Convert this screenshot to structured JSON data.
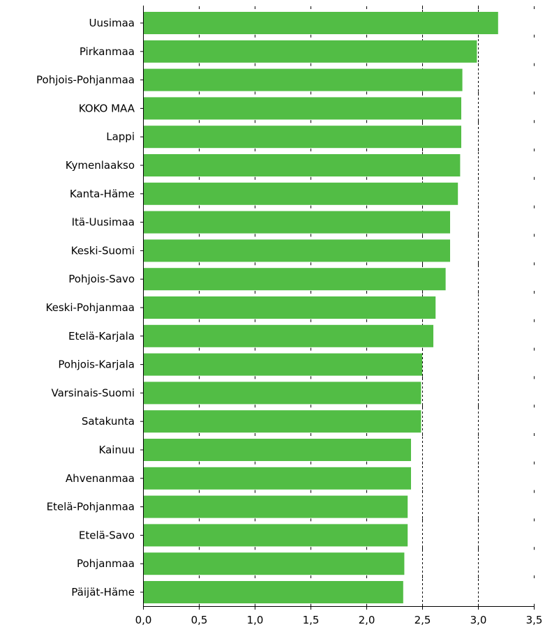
{
  "chart_data": {
    "type": "bar",
    "orientation": "horizontal",
    "categories": [
      "Uusimaa",
      "Pirkanmaa",
      "Pohjois-Pohjanmaa",
      "KOKO MAA",
      "Lappi",
      "Kymenlaakso",
      "Kanta-Häme",
      "Itä-Uusimaa",
      "Keski-Suomi",
      "Pohjois-Savo",
      "Keski-Pohjanmaa",
      "Etelä-Karjala",
      "Pohjois-Karjala",
      "Varsinais-Suomi",
      "Satakunta",
      "Kainuu",
      "Ahvenanmaa",
      "Etelä-Pohjanmaa",
      "Etelä-Savo",
      "Pohjanmaa",
      "Päijät-Häme"
    ],
    "values": [
      3.18,
      2.99,
      2.86,
      2.85,
      2.85,
      2.84,
      2.82,
      2.75,
      2.75,
      2.71,
      2.62,
      2.6,
      2.5,
      2.49,
      2.49,
      2.4,
      2.4,
      2.37,
      2.37,
      2.34,
      2.33
    ],
    "xlim": [
      0,
      3.5
    ],
    "xticks": [
      0,
      0.5,
      1,
      1.5,
      2,
      2.5,
      3,
      3.5
    ],
    "xtick_labels": [
      "0,0",
      "0,5",
      "1,0",
      "1,5",
      "2,0",
      "2,5",
      "3,0",
      "3,5"
    ],
    "reference_lines": [
      2.5,
      3.0
    ],
    "bar_color": "#52bd45",
    "title": "",
    "xlabel": "",
    "ylabel": ""
  }
}
